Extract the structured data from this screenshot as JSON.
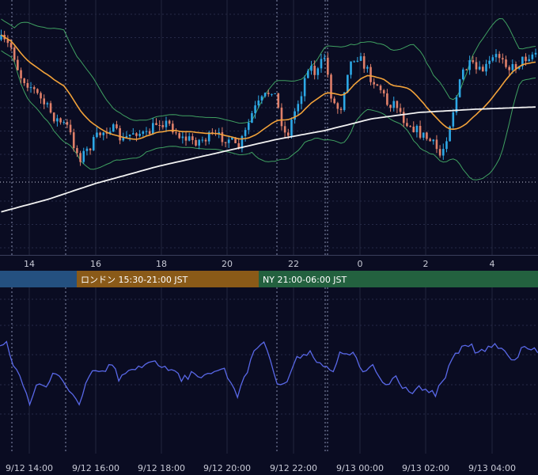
{
  "chart_data": [
    {
      "type": "candlestick",
      "x_hour_ticks": [
        "14",
        "16",
        "18",
        "20",
        "22",
        "0",
        "2",
        "4"
      ],
      "overlays": [
        "bollinger-upper",
        "bollinger-lower",
        "ma-orange",
        "ma-white"
      ],
      "grid": true
    },
    {
      "type": "line",
      "x_time_ticks": [
        "9/12 14:00",
        "9/12 16:00",
        "9/12 18:00",
        "9/12 20:00",
        "9/12 22:00",
        "9/13 00:00",
        "9/13 02:00",
        "9/13 04:00"
      ],
      "grid": true
    }
  ],
  "sessions": [
    {
      "label": "",
      "color": "#245080"
    },
    {
      "label": "ロンドン 15:30-21:00 JST",
      "color": "#8a5a18"
    },
    {
      "label": "NY 21:00-06:00 JST",
      "color": "#23613f"
    }
  ],
  "colors": {
    "background": "#0a0c22",
    "candle_up": "#2da8e6",
    "candle_down": "#e0806a",
    "ma_orange": "#f2a23a",
    "ma_white": "#f2f2f2",
    "bollinger": "#3fa061",
    "oscillator": "#5968e8"
  }
}
